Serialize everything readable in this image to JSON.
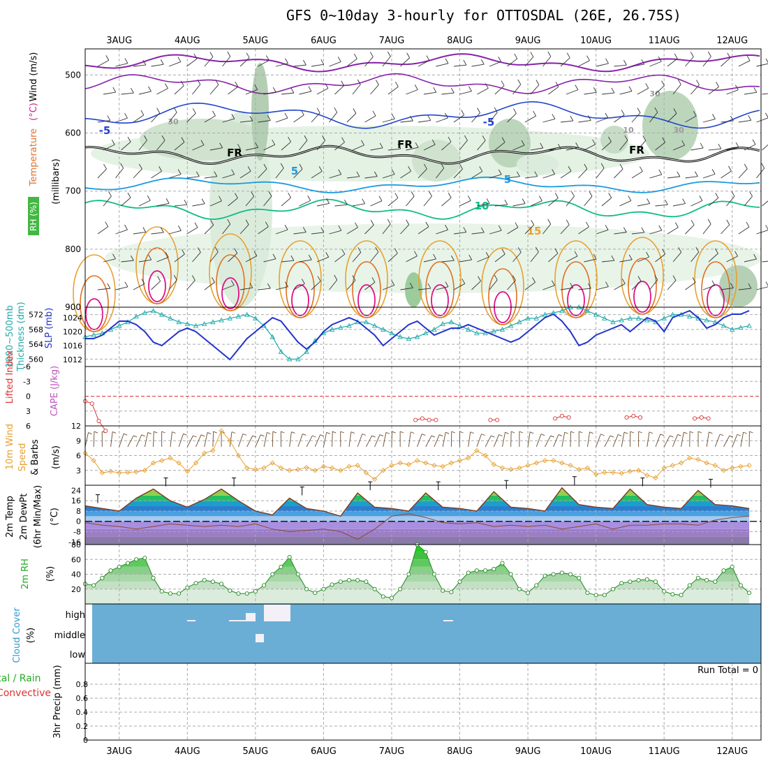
{
  "title": "GFS 0~10day 3-hourly for OTTOSDAL (26E, 26.75S)",
  "dates": [
    "3AUG",
    "4AUG",
    "5AUG",
    "6AUG",
    "7AUG",
    "8AUG",
    "9AUG",
    "10AUG",
    "11AUG",
    "12AUG"
  ],
  "panels": [
    {
      "id": "upper-air",
      "labels": [
        {
          "text": "RH (%)",
          "color": "#22aa22"
        },
        {
          "text": "Temperature",
          "color": "#e07030"
        },
        {
          "text": "(°C)",
          "color": "#cc2288"
        },
        {
          "text": "Wind (m/s)",
          "color": "#000000"
        },
        {
          "text": "(millibars)",
          "color": "#000000"
        }
      ],
      "y_ticks": [
        "500",
        "600",
        "700",
        "800",
        "900"
      ],
      "contour_labels": [
        "-5",
        "-5",
        "FR",
        "FR",
        "FR",
        "5",
        "5",
        "10",
        "15",
        "30",
        "30",
        "10",
        "30"
      ]
    },
    {
      "id": "slp-thickness",
      "labels": [
        {
          "text": "1000~500mb",
          "color": "#22aaaa"
        },
        {
          "text": "Thickness (dm)",
          "color": "#22aaaa"
        },
        {
          "text": "SLP (mb)",
          "color": "#2233cc"
        }
      ],
      "y_ticks_left": [
        "572",
        "568",
        "564",
        "560"
      ],
      "y_ticks_right": [
        "1024",
        "1020",
        "1016",
        "1012"
      ]
    },
    {
      "id": "li-cape",
      "labels": [
        {
          "text": "Lifted Index",
          "color": "#dd3333"
        },
        {
          "text": "CAPE (J/kg)",
          "color": "#bb55bb"
        }
      ],
      "y_ticks": [
        "-6",
        "-3",
        "0",
        "3",
        "6"
      ]
    },
    {
      "id": "wind10m",
      "labels": [
        {
          "text": "10m Wind",
          "color": "#e08a20"
        },
        {
          "text": "Speed",
          "color": "#e08a20"
        },
        {
          "text": "& Barbs",
          "color": "#000000"
        },
        {
          "text": "(m/s)",
          "color": "#000000"
        }
      ],
      "y_ticks": [
        "12",
        "9",
        "6",
        "3"
      ]
    },
    {
      "id": "temp2m",
      "labels": [
        {
          "text": "2m Temp",
          "color": "#000000"
        },
        {
          "text": "2m DewPt",
          "color": "#000000"
        },
        {
          "text": "(6hr Min/Max)",
          "color": "#000000"
        },
        {
          "text": "(°C)",
          "color": "#000000"
        }
      ],
      "y_ticks": [
        "24",
        "16",
        "8",
        "0",
        "-8",
        "-16"
      ]
    },
    {
      "id": "rh2m",
      "labels": [
        {
          "text": "2m RH",
          "color": "#22aa22"
        },
        {
          "text": "(%)",
          "color": "#000000"
        }
      ],
      "y_ticks": [
        "80",
        "60",
        "40",
        "20"
      ]
    },
    {
      "id": "cloud",
      "labels": [
        {
          "text": "Cloud Cover",
          "color": "#3399cc"
        },
        {
          "text": "(%)",
          "color": "#000000"
        }
      ],
      "levels": [
        "high",
        "middle",
        "low"
      ]
    },
    {
      "id": "precip",
      "labels": [
        {
          "text": "Total / Rain",
          "color": "#22aa22"
        },
        {
          "text": "Convective",
          "color": "#dd3333"
        },
        {
          "text": "3hr Precip (mm)",
          "color": "#000000"
        }
      ],
      "y_ticks": [
        "0.8",
        "0.6",
        "0.4",
        "0.2",
        "0"
      ],
      "run_total": "Run Total = 0"
    }
  ],
  "colors": {
    "thickness": "#22aaaa",
    "slp": "#2233cc",
    "wind": "#e8a030",
    "rh": "#22aa22",
    "cloud_bg": "#6aaed6",
    "li": "#dd3333"
  },
  "chart_data": [
    {
      "type": "line",
      "title": "1000~500mb Thickness (dm) / SLP (mb)",
      "x": [
        "2.5",
        "2.625",
        "2.75",
        "2.875",
        "3",
        "3.125",
        "3.25",
        "3.375",
        "3.5",
        "3.625",
        "3.75",
        "3.875",
        "4",
        "4.125",
        "4.25",
        "4.375",
        "4.5",
        "4.625",
        "4.75",
        "4.875",
        "5",
        "5.125",
        "5.25",
        "5.375",
        "5.5",
        "5.625",
        "5.75",
        "5.875",
        "6",
        "6.125",
        "6.25",
        "6.375",
        "6.5",
        "6.625",
        "6.75",
        "6.875",
        "7",
        "7.125",
        "7.25",
        "7.375",
        "7.5",
        "7.625",
        "7.75",
        "7.875",
        "8",
        "8.125",
        "8.25",
        "8.375",
        "8.5",
        "8.625",
        "8.75",
        "8.875",
        "9",
        "9.125",
        "9.25",
        "9.375",
        "9.5",
        "9.625",
        "9.75",
        "9.875",
        "10",
        "10.125",
        "10.25",
        "10.375",
        "10.5",
        "10.625",
        "10.75",
        "10.875",
        "11",
        "11.125",
        "11.25",
        "11.375",
        "11.5",
        "11.625",
        "11.75",
        "11.875",
        "12",
        "12.125",
        "12.25"
      ],
      "series": [
        {
          "name": "Thickness",
          "axis": "left",
          "values": [
            566,
            566.5,
            567,
            568,
            569,
            570,
            571.5,
            572.5,
            573,
            572,
            571,
            570,
            569.5,
            569,
            569.5,
            570,
            570.5,
            571,
            571.5,
            572,
            571,
            569,
            566,
            562,
            560,
            560,
            562,
            565,
            567,
            568,
            568.5,
            569,
            570,
            570,
            569,
            568,
            567,
            566,
            565.5,
            566,
            567,
            568,
            569.5,
            570,
            569,
            568,
            567,
            567,
            567.5,
            568,
            569,
            570,
            571,
            571,
            572,
            572.5,
            573,
            574,
            574,
            573,
            572,
            571,
            570,
            570.5,
            571,
            571,
            570.5,
            570,
            571,
            572,
            572,
            571.5,
            571,
            570.5,
            570,
            569,
            568,
            568.5,
            569
          ]
        },
        {
          "name": "SLP",
          "axis": "right",
          "values": [
            1018,
            1018,
            1019,
            1021,
            1023,
            1023,
            1022,
            1020,
            1017,
            1016,
            1018,
            1020,
            1021,
            1020,
            1018,
            1016,
            1014,
            1012,
            1015,
            1018,
            1020,
            1022,
            1024,
            1023,
            1020,
            1017,
            1015,
            1017,
            1020,
            1022,
            1023,
            1024,
            1023,
            1021,
            1019,
            1016,
            1018,
            1020,
            1022,
            1023,
            1021,
            1019,
            1020,
            1021,
            1021,
            1022,
            1021,
            1020,
            1019,
            1018,
            1017,
            1018,
            1020,
            1022,
            1024,
            1025,
            1023,
            1020,
            1016,
            1017,
            1019,
            1020,
            1021,
            1022,
            1020,
            1022,
            1024,
            1023,
            1020,
            1024,
            1025,
            1026,
            1024,
            1021,
            1022,
            1024,
            1025,
            1025,
            1026
          ]
        }
      ],
      "ylim_left": [
        558,
        574
      ],
      "ylim_right": [
        1010,
        1027
      ]
    },
    {
      "type": "line",
      "title": "Lifted Index",
      "x": [
        "2.5",
        "2.6",
        "2.7",
        "2.8",
        "7.35",
        "7.45",
        "7.55",
        "7.65",
        "8.45",
        "8.55",
        "9.4",
        "9.5",
        "9.6",
        "10.45",
        "10.55",
        "10.65",
        "11.45",
        "11.55",
        "11.65"
      ],
      "series": [
        {
          "name": "LI",
          "values": [
            1,
            1.5,
            5,
            7,
            4.8,
            4.5,
            4.8,
            4.8,
            4.8,
            4.8,
            4.5,
            4,
            4.3,
            4.3,
            4,
            4.3,
            4.5,
            4.3,
            4.5
          ]
        }
      ],
      "ylim": [
        -6,
        6
      ]
    },
    {
      "type": "line",
      "title": "10m Wind Speed",
      "x": [
        "2.5",
        "2.625",
        "2.75",
        "2.875",
        "3",
        "3.125",
        "3.25",
        "3.375",
        "3.5",
        "3.625",
        "3.75",
        "3.875",
        "4",
        "4.125",
        "4.25",
        "4.375",
        "4.5",
        "4.625",
        "4.75",
        "4.875",
        "5",
        "5.125",
        "5.25",
        "5.375",
        "5.5",
        "5.625",
        "5.75",
        "5.875",
        "6",
        "6.125",
        "6.25",
        "6.375",
        "6.5",
        "6.625",
        "6.75",
        "6.875",
        "7",
        "7.125",
        "7.25",
        "7.375",
        "7.5",
        "7.625",
        "7.75",
        "7.875",
        "8",
        "8.125",
        "8.25",
        "8.375",
        "8.5",
        "8.625",
        "8.75",
        "8.875",
        "9",
        "9.125",
        "9.25",
        "9.375",
        "9.5",
        "9.625",
        "9.75",
        "9.875",
        "10",
        "10.125",
        "10.25",
        "10.375",
        "10.5",
        "10.625",
        "10.75",
        "10.875",
        "11",
        "11.125",
        "11.25",
        "11.375",
        "11.5",
        "11.625",
        "11.75",
        "11.875",
        "12",
        "12.125",
        "12.25"
      ],
      "series": [
        {
          "name": "Speed",
          "values": [
            6.5,
            5,
            2.5,
            2.8,
            2.5,
            2.6,
            2.7,
            3,
            4.5,
            5,
            5.5,
            4.5,
            2.8,
            4.5,
            6.5,
            7,
            11,
            9,
            6,
            3.5,
            3.2,
            3.5,
            4.5,
            3.5,
            3,
            3.2,
            3.6,
            3,
            3.8,
            3.5,
            3,
            3.8,
            4,
            2.5,
            1.2,
            3,
            4,
            4.5,
            4.2,
            5,
            4.5,
            4,
            3.8,
            4.5,
            5,
            5.5,
            7,
            6,
            4.2,
            3.5,
            3.2,
            3.5,
            4,
            4.5,
            5,
            5,
            4.5,
            4,
            3.2,
            3.5,
            2.2,
            2.6,
            2.6,
            2.4,
            2.8,
            3,
            2,
            1.5,
            3.5,
            4,
            4.5,
            5.5,
            5.2,
            4.5,
            4,
            3,
            3.5,
            3.8,
            4
          ]
        }
      ],
      "ylim": [
        0,
        12
      ]
    },
    {
      "type": "area",
      "title": "2m Temp / 2m DewPt",
      "x": [
        "2.5",
        "2.75",
        "3",
        "3.25",
        "3.5",
        "3.75",
        "4",
        "4.25",
        "4.5",
        "4.75",
        "5",
        "5.25",
        "5.5",
        "5.75",
        "6",
        "6.25",
        "6.5",
        "6.75",
        "7",
        "7.25",
        "7.5",
        "7.75",
        "8",
        "8.25",
        "8.5",
        "8.75",
        "9",
        "9.25",
        "9.5",
        "9.75",
        "10",
        "10.25",
        "10.5",
        "10.75",
        "11",
        "11.25",
        "11.5",
        "11.75",
        "12",
        "12.25"
      ],
      "series": [
        {
          "name": "2m Temp",
          "values": [
            12,
            10,
            8,
            18,
            25,
            16,
            11,
            17,
            25,
            16,
            8,
            5,
            18,
            10,
            8,
            4,
            22,
            11,
            10,
            8,
            22,
            11,
            10,
            8,
            23,
            11,
            10,
            8,
            26,
            13,
            11,
            10,
            25,
            13,
            11,
            10,
            24,
            13,
            12,
            10
          ]
        },
        {
          "name": "2m DewPt",
          "values": [
            -1,
            -3,
            -4,
            -6,
            -4,
            -2,
            -3,
            -4,
            -3,
            -4,
            -2,
            -6,
            -8,
            -7,
            -6,
            -8,
            -14,
            -6,
            4,
            6,
            3,
            -1,
            -2,
            -1,
            -4,
            -3,
            -4,
            -3,
            -6,
            -4,
            -2,
            -6,
            -3,
            -3,
            -2,
            -2,
            -3,
            1,
            3,
            4
          ]
        }
      ],
      "ylim": [
        -18,
        28
      ]
    },
    {
      "type": "area",
      "title": "2m RH",
      "x": [
        "2.5",
        "2.625",
        "2.75",
        "2.875",
        "3",
        "3.125",
        "3.25",
        "3.375",
        "3.5",
        "3.625",
        "3.75",
        "3.875",
        "4",
        "4.125",
        "4.25",
        "4.375",
        "4.5",
        "4.625",
        "4.75",
        "4.875",
        "5",
        "5.125",
        "5.25",
        "5.375",
        "5.5",
        "5.625",
        "5.75",
        "5.875",
        "6",
        "6.125",
        "6.25",
        "6.375",
        "6.5",
        "6.625",
        "6.75",
        "6.875",
        "7",
        "7.125",
        "7.25",
        "7.375",
        "7.5",
        "7.625",
        "7.75",
        "7.875",
        "8",
        "8.125",
        "8.25",
        "8.375",
        "8.5",
        "8.625",
        "8.75",
        "8.875",
        "9",
        "9.125",
        "9.25",
        "9.375",
        "9.5",
        "9.625",
        "9.75",
        "9.875",
        "10",
        "10.125",
        "10.25",
        "10.375",
        "10.5",
        "10.625",
        "10.75",
        "10.875",
        "11",
        "11.125",
        "11.25",
        "11.375",
        "11.5",
        "11.625",
        "11.75",
        "11.875",
        "12",
        "12.125",
        "12.25"
      ],
      "series": [
        {
          "name": "RH",
          "values": [
            27,
            25,
            35,
            45,
            50,
            55,
            60,
            62,
            35,
            17,
            14,
            14,
            22,
            28,
            32,
            30,
            27,
            18,
            14,
            14,
            17,
            25,
            40,
            50,
            63,
            40,
            20,
            15,
            20,
            26,
            30,
            32,
            32,
            30,
            20,
            10,
            8,
            20,
            40,
            80,
            70,
            40,
            18,
            16,
            30,
            42,
            45,
            45,
            47,
            55,
            40,
            20,
            15,
            25,
            38,
            40,
            42,
            40,
            35,
            15,
            12,
            12,
            20,
            28,
            30,
            32,
            33,
            30,
            17,
            13,
            12,
            25,
            35,
            32,
            30,
            45,
            50,
            25,
            15
          ]
        }
      ],
      "ylim": [
        0,
        80
      ]
    },
    {
      "type": "bar",
      "title": "Cloud Cover (%)",
      "categories": [
        "high",
        "middle",
        "low"
      ],
      "values": [
        0,
        0,
        0
      ]
    },
    {
      "type": "bar",
      "title": "3hr Precip (mm)",
      "categories": [],
      "values": [],
      "ylim": [
        0,
        1
      ]
    }
  ]
}
